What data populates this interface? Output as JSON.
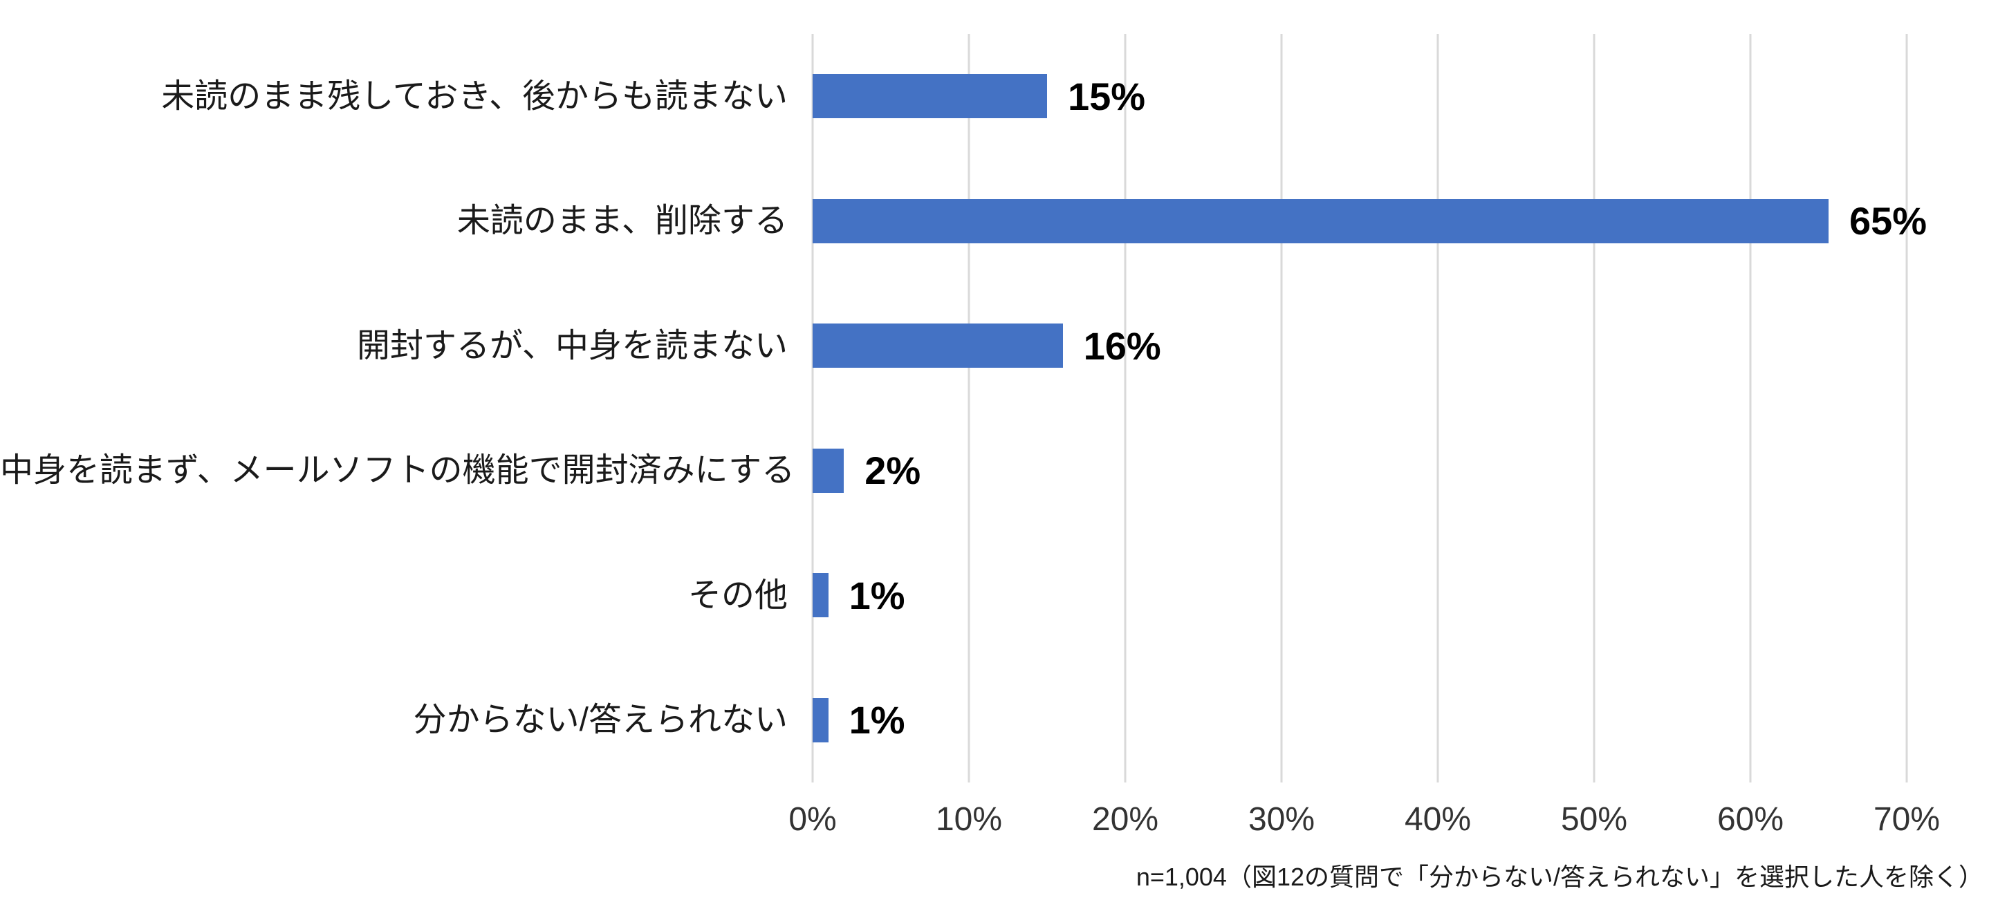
{
  "chart_data": {
    "type": "bar",
    "orientation": "horizontal",
    "title": "",
    "xlabel": "",
    "ylabel": "",
    "categories": [
      "未読のまま残しておき、後からも読まない",
      "未読のまま、削除する",
      "開封するが、中身を読まない",
      "中身を読まず、メールソフトの機能で開封済みにする",
      "その他",
      "分からない/答えられない"
    ],
    "values": [
      15,
      65,
      16,
      2,
      1,
      1
    ],
    "value_labels": [
      "15%",
      "65%",
      "16%",
      "2%",
      "1%",
      "1%"
    ],
    "xlim": [
      0,
      70
    ],
    "x_ticks": [
      "0%",
      "10%",
      "20%",
      "30%",
      "40%",
      "50%",
      "60%",
      "70%"
    ],
    "grid": true,
    "legend": false,
    "colors": {
      "bar": "#4472C4",
      "gridline": "#D9D9D9",
      "value_label": "#000000",
      "category_label": "#1a1a1a",
      "tick_label": "#333333"
    }
  },
  "footnote": "n=1,004（図12の質問で「分からない/答えられない」を選択した人を除く）"
}
